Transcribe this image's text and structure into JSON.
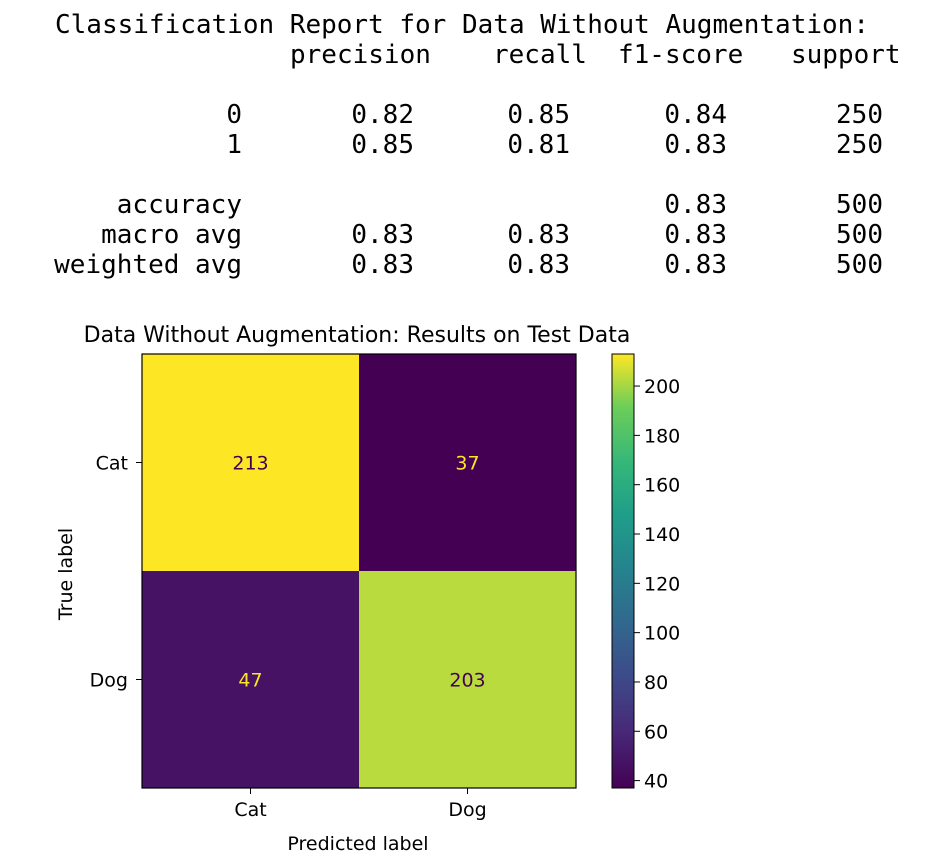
{
  "report": {
    "title": "Classification Report for Data Without Augmentation:",
    "headers": [
      "precision",
      "recall",
      "f1-score",
      "support"
    ],
    "rows": [
      {
        "label": "0",
        "precision": "0.82",
        "recall": "0.85",
        "f1": "0.84",
        "support": "250"
      },
      {
        "label": "1",
        "precision": "0.85",
        "recall": "0.81",
        "f1": "0.83",
        "support": "250"
      },
      {
        "label": "accuracy",
        "precision": "",
        "recall": "",
        "f1": "0.83",
        "support": "500"
      },
      {
        "label": "macro avg",
        "precision": "0.83",
        "recall": "0.83",
        "f1": "0.83",
        "support": "500"
      },
      {
        "label": "weighted avg",
        "precision": "0.83",
        "recall": "0.83",
        "f1": "0.83",
        "support": "500"
      }
    ]
  },
  "chart_data": {
    "type": "heatmap",
    "title": "Data Without Augmentation: Results on Test Data",
    "xlabel": "Predicted label",
    "ylabel": "True label",
    "x_categories": [
      "Cat",
      "Dog"
    ],
    "y_categories": [
      "Cat",
      "Dog"
    ],
    "values": [
      [
        213,
        37
      ],
      [
        47,
        203
      ]
    ],
    "colormap": "viridis",
    "colorbar": {
      "min": 37,
      "max": 213,
      "ticks": [
        40,
        60,
        80,
        100,
        120,
        140,
        160,
        180,
        200
      ]
    },
    "grid": false
  }
}
